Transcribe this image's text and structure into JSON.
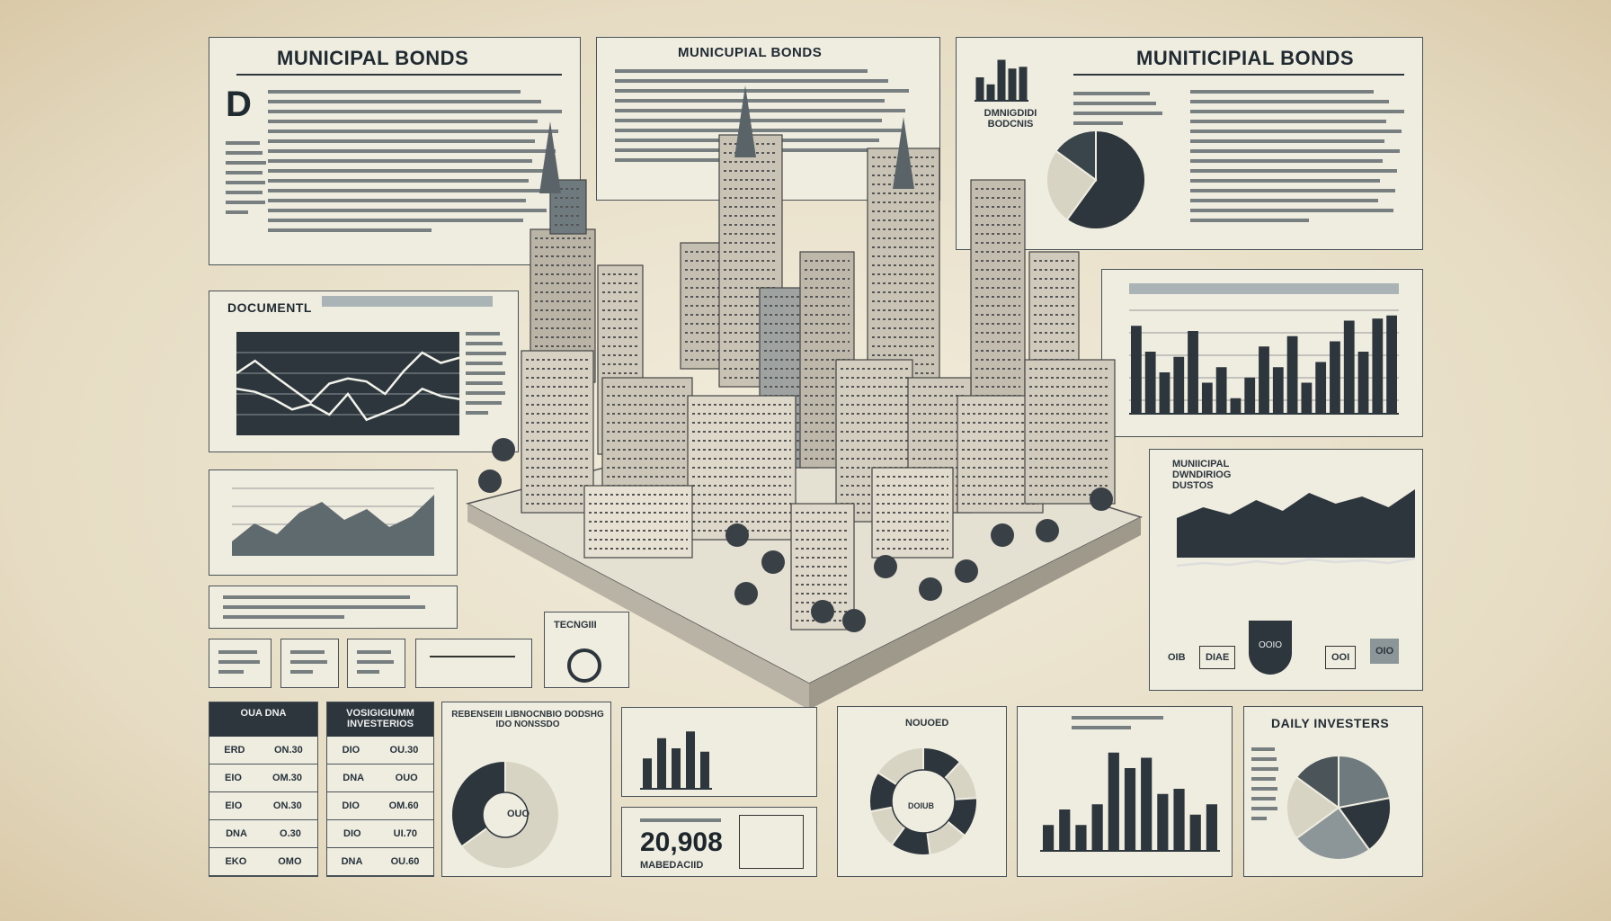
{
  "panels": {
    "top_left": {
      "title": "MUNICIPAL BONDS",
      "dropcap": "D"
    },
    "top_center": {
      "title": "MUNICUPIAL BONDS"
    },
    "top_right": {
      "title": "MUNITICIPIAL BONDS",
      "side_label": "DMNIGDIDI BODCNIS"
    },
    "document": {
      "title": "DOCUMENTL"
    },
    "tech": {
      "title": "TECNGIII"
    },
    "mountain": {
      "title": "MUNIICIPAL DWNDIRIOG DUSTOS"
    },
    "nouoed": {
      "title": "NOUOED",
      "center": "DOIUB"
    },
    "stat": {
      "value": "20,908",
      "caption": "MABEDACIID"
    },
    "daily": {
      "title": "DAILY INVESTERS"
    },
    "table1": {
      "header": "OUA DNA",
      "rows": [
        [
          "ERD",
          "ON.30"
        ],
        [
          "EIO",
          "OM.30"
        ],
        [
          "EIO",
          "ON.30"
        ],
        [
          "DNA",
          "O.30"
        ],
        [
          "EKO",
          "OMO"
        ]
      ]
    },
    "table2": {
      "header": "VOSIGIGIUMM INVESTERIOS",
      "rows": [
        [
          "DIO",
          "OU.30"
        ],
        [
          "DNA",
          "OUO"
        ],
        [
          "DIO",
          "OM.60"
        ],
        [
          "DIO",
          "UI.70"
        ],
        [
          "DNA",
          "OU.60"
        ]
      ]
    },
    "donut": {
      "title": "REBENSEIII LIBNOCNBIO DODSHG IDO NONSSDO",
      "center": "OUO"
    },
    "shield": {
      "label": "OOIO",
      "left": "OIB",
      "mid": "DIAE",
      "right1": "OOI",
      "right2": "OIO"
    }
  },
  "colors": {
    "ink": "#26323a",
    "paper": "#efece0",
    "dark": "#2c363c",
    "mid": "#6f7a7e",
    "light": "#d8d4c4"
  },
  "charts": {
    "top_right_bars": [
      40,
      28,
      70,
      55,
      58
    ],
    "right_bars": [
      85,
      60,
      40,
      55,
      80,
      30,
      45,
      15,
      35,
      65,
      45,
      75,
      30,
      50,
      70,
      90,
      60,
      92,
      95
    ],
    "bottom_bars": [
      25,
      40,
      25,
      45,
      95,
      80,
      90,
      55,
      60,
      35,
      45
    ],
    "mini_bars": [
      45,
      75,
      60,
      85,
      55
    ],
    "line_a": [
      60,
      72,
      58,
      45,
      32,
      50,
      55,
      52,
      40,
      62,
      80,
      70,
      75
    ],
    "line_b": [
      45,
      42,
      35,
      25,
      30,
      20,
      40,
      15,
      22,
      30,
      45,
      38,
      35
    ],
    "area": [
      20,
      45,
      30,
      60,
      75,
      50,
      65,
      40,
      55,
      85
    ],
    "mountain": [
      55,
      70,
      60,
      80,
      65,
      90,
      75,
      85,
      70,
      95
    ],
    "pie_top_right": [
      60,
      25,
      15
    ],
    "pie_daily": [
      22,
      18,
      25,
      20,
      15
    ]
  }
}
